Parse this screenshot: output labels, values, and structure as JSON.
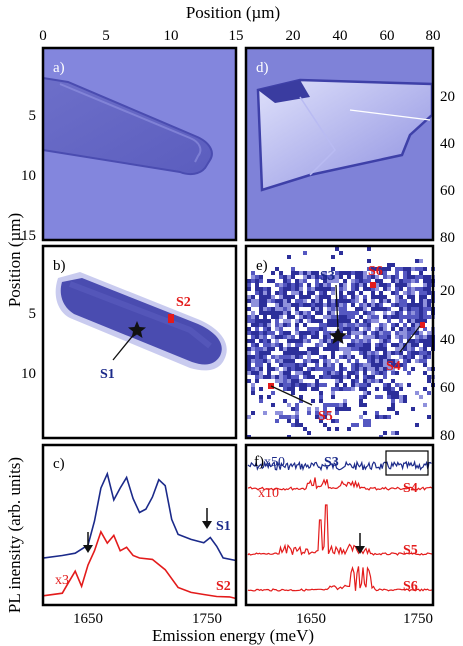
{
  "labels": {
    "top_axis_label": "Position (µm)",
    "left_axis_label": "Position (µm)",
    "pl_axis_label": "PL inensity (arb. units)",
    "bottom_axis_label": "Emission energy (meV)"
  },
  "top_ticks_left": [
    "0",
    "5",
    "10",
    "15"
  ],
  "top_ticks_right": [
    "20",
    "40",
    "60",
    "80"
  ],
  "panels": {
    "a": {
      "label": "a)"
    },
    "b": {
      "label": "b)",
      "ticks": [
        "5",
        "10"
      ],
      "S1": "S1",
      "S2": "S2"
    },
    "d": {
      "label": "d)",
      "ticks": [
        "20",
        "40",
        "60",
        "80"
      ]
    },
    "e": {
      "label": "e)",
      "ticks": [
        "20",
        "40",
        "60",
        "80"
      ],
      "S3": "S3",
      "S4": "S4",
      "S5": "S5",
      "S6": "S6"
    },
    "a_ticks": [
      "5",
      "10",
      "15"
    ],
    "c": {
      "label": "c)",
      "S1": "S1",
      "S2": "S2",
      "scale": "x3",
      "ticks": [
        "1650",
        "1750"
      ]
    },
    "f": {
      "label": "f)",
      "S3": "S3",
      "S4": "S4",
      "S5": "S5",
      "S6": "S6",
      "scale50": "x50",
      "scale10": "x10",
      "ticks": [
        "1650",
        "1750"
      ]
    }
  },
  "chart_data": [
    {
      "type": "line",
      "panel": "c",
      "xlabel": "Emission energy (meV)",
      "ylabel": "PL inensity (arb. units)",
      "xlim": [
        1615,
        1765
      ],
      "x_ticks": [
        1650,
        1750
      ],
      "series": [
        {
          "name": "S1",
          "color": "#1b2a8a",
          "x": [
            1615,
            1630,
            1640,
            1650,
            1655,
            1660,
            1665,
            1670,
            1675,
            1680,
            1685,
            1690,
            1695,
            1700,
            1705,
            1710,
            1715,
            1720,
            1730,
            1740,
            1745,
            1750,
            1755,
            1765
          ],
          "y": [
            0.28,
            0.3,
            0.32,
            0.38,
            0.55,
            0.78,
            0.88,
            0.7,
            0.78,
            0.85,
            0.7,
            0.6,
            0.62,
            0.7,
            0.82,
            0.78,
            0.55,
            0.45,
            0.42,
            0.4,
            0.44,
            0.38,
            0.3,
            0.28
          ]
        },
        {
          "name": "S2",
          "color": "#e31b1b",
          "x": [
            1615,
            1630,
            1635,
            1640,
            1645,
            1650,
            1655,
            1660,
            1665,
            1670,
            1675,
            1680,
            1685,
            1690,
            1700,
            1710,
            1720,
            1730,
            1740,
            1750,
            1760,
            1765
          ],
          "y": [
            0.02,
            0.04,
            0.12,
            0.2,
            0.1,
            0.25,
            0.35,
            0.48,
            0.4,
            0.45,
            0.34,
            0.36,
            0.3,
            0.28,
            0.27,
            0.2,
            0.08,
            0.05,
            0.04,
            0.03,
            0.03,
            0.02
          ]
        }
      ]
    },
    {
      "type": "line",
      "panel": "f",
      "xlabel": "Emission energy (meV)",
      "xlim": [
        1615,
        1765
      ],
      "x_ticks": [
        1650,
        1750
      ],
      "series": [
        {
          "name": "S3",
          "color": "#1b2a8a",
          "scale": "x50"
        },
        {
          "name": "S4",
          "color": "#e31b1b",
          "scale": "x10"
        },
        {
          "name": "S5",
          "color": "#e31b1b"
        },
        {
          "name": "S6",
          "color": "#e31b1b"
        }
      ]
    }
  ]
}
